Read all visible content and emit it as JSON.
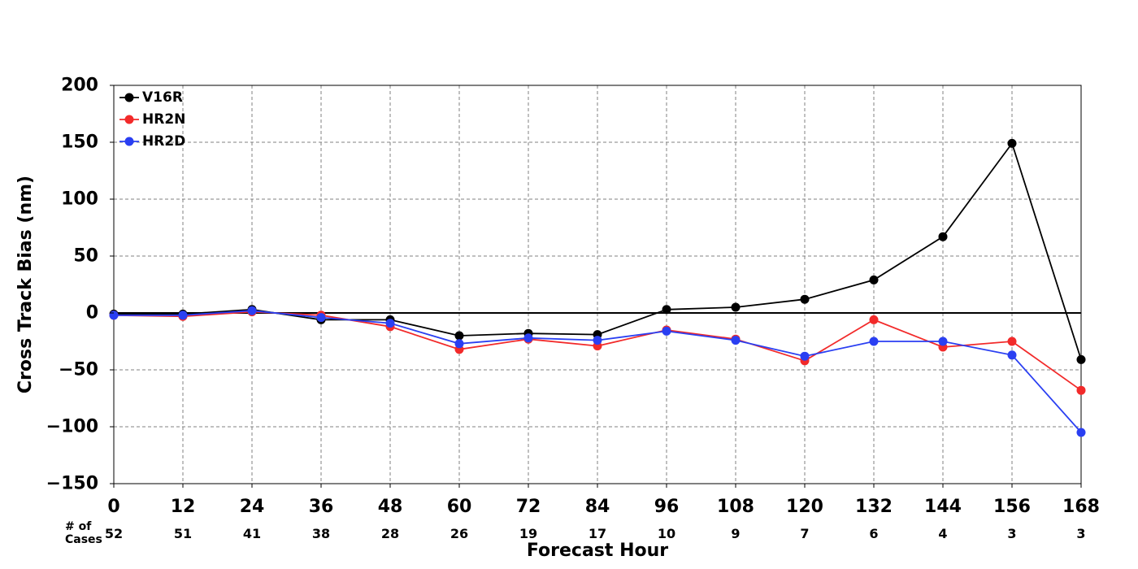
{
  "chart_data": {
    "type": "line",
    "title": "",
    "xlabel": "Forecast Hour",
    "ylabel": "Cross Track Bias (nm)",
    "x": [
      0,
      12,
      24,
      36,
      48,
      60,
      72,
      84,
      96,
      108,
      120,
      132,
      144,
      156,
      168
    ],
    "x_ticks": [
      "0",
      "12",
      "24",
      "36",
      "48",
      "60",
      "72",
      "84",
      "96",
      "108",
      "120",
      "132",
      "144",
      "156",
      "168"
    ],
    "y_ticks": [
      "200",
      "150",
      "100",
      "50",
      "0",
      "−50",
      "−100",
      "−150"
    ],
    "y_tick_values": [
      200,
      150,
      100,
      50,
      0,
      -50,
      -100,
      -150
    ],
    "xlim": [
      0,
      168
    ],
    "ylim": [
      -150,
      200
    ],
    "grid": true,
    "legend_position": "top-left",
    "zero_line": true,
    "cases_label": [
      "# of",
      "Cases"
    ],
    "cases": [
      "52",
      "51",
      "41",
      "38",
      "28",
      "26",
      "19",
      "17",
      "10",
      "9",
      "7",
      "6",
      "4",
      "3",
      "3"
    ],
    "series": [
      {
        "name": "V16R",
        "color": "#000000",
        "values": [
          -1,
          -1,
          3,
          -6,
          -6,
          -20,
          -18,
          -19,
          3,
          5,
          12,
          29,
          67,
          149,
          -41
        ]
      },
      {
        "name": "HR2N",
        "color": "#f22a2a",
        "values": [
          -2,
          -3,
          1,
          -2,
          -12,
          -32,
          -23,
          -29,
          -15,
          -23,
          -42,
          -6,
          -30,
          -25,
          -68
        ]
      },
      {
        "name": "HR2D",
        "color": "#2a3ff2",
        "values": [
          -2,
          -2,
          2,
          -4,
          -9,
          -27,
          -22,
          -24,
          -16,
          -24,
          -38,
          -25,
          -25,
          -37,
          -105
        ]
      }
    ]
  }
}
